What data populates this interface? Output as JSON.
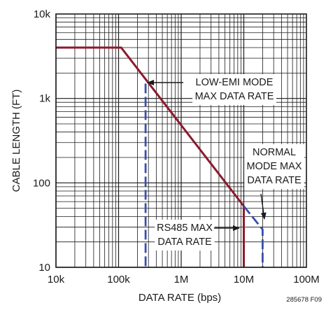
{
  "chart_data": {
    "type": "line",
    "xlabel": "DATA RATE (bps)",
    "ylabel": "CABLE LENGTH (FT)",
    "xscale": "log",
    "yscale": "log",
    "xlim": [
      10000,
      100000000
    ],
    "ylim": [
      10,
      10000
    ],
    "grid": true,
    "x_ticks": [
      {
        "value": 10000,
        "label": "10k"
      },
      {
        "value": 100000,
        "label": "100k"
      },
      {
        "value": 1000000,
        "label": "1M"
      },
      {
        "value": 10000000,
        "label": "10M"
      },
      {
        "value": 100000000,
        "label": "100M"
      }
    ],
    "y_ticks": [
      {
        "value": 10,
        "label": "10"
      },
      {
        "value": 100,
        "label": "100"
      },
      {
        "value": 1000,
        "label": "1k"
      },
      {
        "value": 10000,
        "label": "10k"
      }
    ],
    "series": [
      {
        "style": "solid",
        "color": "#8b1a2b",
        "points": [
          [
            10000,
            4000
          ],
          [
            110000,
            4000
          ],
          [
            10000000,
            53
          ],
          [
            10000000,
            10
          ]
        ]
      },
      {
        "style": "dashed",
        "color": "#3a4fa8",
        "points": [
          [
            270000,
            1500
          ],
          [
            270000,
            10
          ]
        ]
      },
      {
        "style": "dashed",
        "color": "#3a4fa8",
        "points": [
          [
            10000000,
            53
          ],
          [
            20000000,
            28
          ],
          [
            20000000,
            10
          ]
        ]
      }
    ],
    "annotations": [
      {
        "lines": [
          "LOW-EMI MODE",
          "MAX DATA RATE"
        ],
        "target": [
          270000,
          1500
        ]
      },
      {
        "lines": [
          "NORMAL",
          "MODE MAX",
          "DATA RATE"
        ],
        "target": [
          20000000,
          28
        ]
      },
      {
        "lines": [
          "RS485 MAX",
          "DATA RATE"
        ],
        "target": [
          10000000,
          32
        ]
      }
    ],
    "figure_code": "285678 F09"
  }
}
